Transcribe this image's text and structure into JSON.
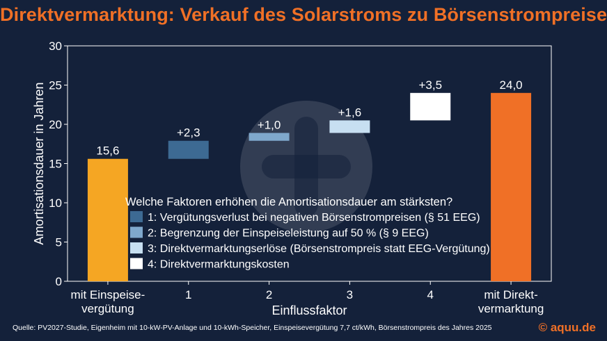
{
  "title": "Direktvermarktung: Verkauf des Solarstroms zu Börsenstrompreisen",
  "source": "Quelle: PV2027-Studie, Eigenheim mit 10-kW-PV-Anlage und 10-kWh-Speicher, Einspeisevergütung 7,7 ct/kWh, Börsenstrompreis des Jahres 2025",
  "brand": "© aquu.de",
  "chart_data": {
    "type": "bar",
    "subtype": "waterfall",
    "title": "Direktvermarktung: Verkauf des Solarstroms zu Börsenstrompreisen",
    "xlabel": "Einflussfaktor",
    "ylabel": "Amortisationsdauer in Jahren",
    "ylim": [
      0,
      30
    ],
    "yticks": [
      0,
      5,
      10,
      15,
      20,
      25,
      30
    ],
    "grid": false,
    "categories": [
      [
        "mit Einspeise-",
        "vergütung"
      ],
      [
        "1"
      ],
      [
        "2"
      ],
      [
        "3"
      ],
      [
        "4"
      ],
      [
        "mit Direkt-",
        "vermarktung"
      ]
    ],
    "bars": [
      {
        "kind": "total",
        "start": 0,
        "end": 15.6,
        "label": "15,6",
        "color": "#f5a623"
      },
      {
        "kind": "delta",
        "start": 15.6,
        "end": 17.9,
        "label": "+2,3",
        "color": "#3d6a93"
      },
      {
        "kind": "delta",
        "start": 17.9,
        "end": 18.9,
        "label": "+1,0",
        "color": "#7fa8cc"
      },
      {
        "kind": "delta",
        "start": 18.9,
        "end": 20.5,
        "label": "+1,6",
        "color": "#c7dff1"
      },
      {
        "kind": "delta",
        "start": 20.5,
        "end": 24.0,
        "label": "+3,5",
        "color": "#ffffff"
      },
      {
        "kind": "total",
        "start": 0,
        "end": 24.0,
        "label": "24,0",
        "color": "#f07026"
      }
    ],
    "legend": {
      "title": "Welche Faktoren erhöhen die Amortisationsdauer am stärksten?",
      "placement": "center",
      "items": [
        {
          "label": "1: Vergütungsverlust bei negativen Börsenstrompreisen (§ 51 EEG)",
          "color": "#3d6a93"
        },
        {
          "label": "2: Begrenzung der Einspeiseleistung auf 50 % (§ 9 EEG)",
          "color": "#7fa8cc"
        },
        {
          "label": "3: Direktvermarktungserlöse (Börsenstrompreis statt EEG-Vergütung)",
          "color": "#c7dff1"
        },
        {
          "label": "4: Direktvermarktungskosten",
          "color": "#ffffff"
        }
      ]
    }
  }
}
